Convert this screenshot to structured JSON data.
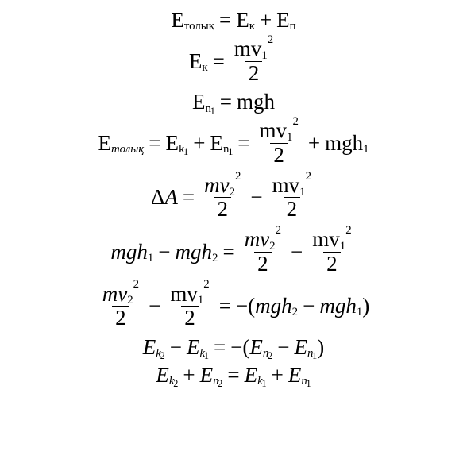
{
  "symbols": {
    "E": "E",
    "eq": "=",
    "plus": "+",
    "minus": "−",
    "lparen": "(",
    "rparen": ")",
    "delta": "Δ",
    "A": "A",
    "m": "m",
    "v": "v",
    "g": "g",
    "h": "h",
    "two": "2",
    "one": "1",
    "sq": "2"
  },
  "subscripts": {
    "tolyk_cyr": "толық",
    "tolyk_it": "толық",
    "k_cyr": "к",
    "p_cyr": "п",
    "n": "n",
    "k": "k",
    "s1": "1",
    "s2": "2"
  }
}
